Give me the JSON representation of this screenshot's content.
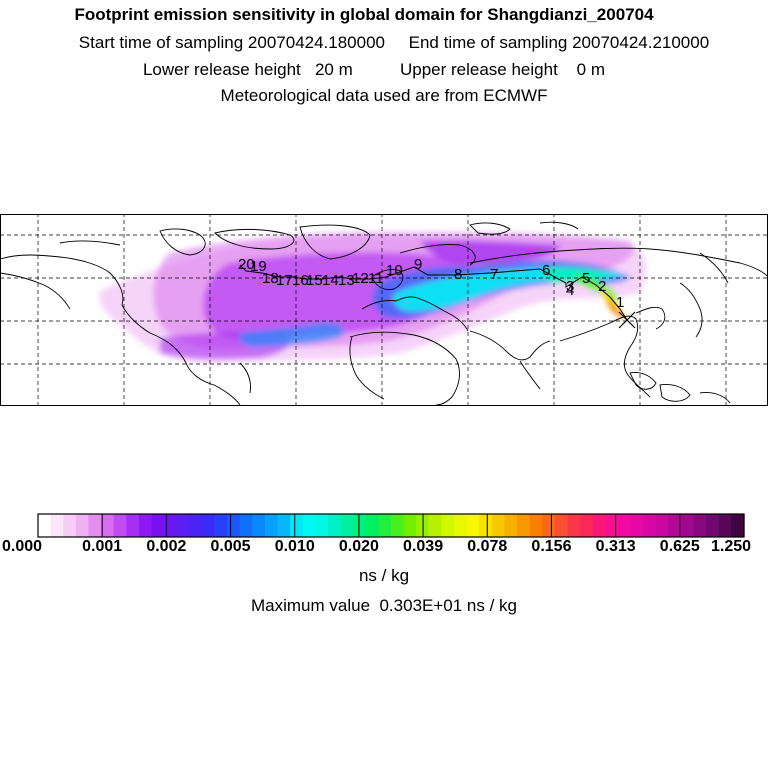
{
  "header": {
    "title": "Footprint emission sensitivity in global domain for Shangdianzi_200704",
    "sampling_line": "Start time of sampling 20070424.180000     End time of sampling 20070424.210000",
    "release_line": "Lower release height   20 m          Upper release height    0 m",
    "met_line": "Meteorological data used are from ECMWF"
  },
  "map": {
    "station_marker": "x-cross",
    "trajectory_labels": [
      "1",
      "2",
      "3",
      "4",
      "5",
      "6",
      "7",
      "8",
      "9",
      "10",
      "11",
      "12",
      "13",
      "14",
      "15",
      "16",
      "17",
      "18",
      "19",
      "20"
    ],
    "colors": {
      "coast": "#000000",
      "grid": "#000000",
      "trajectory": "#000000"
    }
  },
  "colorbar": {
    "tick_labels": [
      "0.000",
      "0.001",
      "0.002",
      "0.005",
      "0.010",
      "0.020",
      "0.039",
      "0.078",
      "0.156",
      "0.313",
      "0.625",
      "1.250"
    ],
    "colors": [
      "#ffffff",
      "#fbe6fb",
      "#f7ccf7",
      "#f0b0f4",
      "#e58cef",
      "#d66cf0",
      "#c04cf2",
      "#a830f5",
      "#9018f2",
      "#7a10f0",
      "#6a18ee",
      "#5a1ef0",
      "#4a24f2",
      "#3a2cf6",
      "#2a40f8",
      "#1c58fa",
      "#1070fa",
      "#0a88fa",
      "#08a0fa",
      "#06b8fa",
      "#00e8f8",
      "#00f8f0",
      "#00f8e0",
      "#00f0c8",
      "#00f0a0",
      "#00f080",
      "#00f060",
      "#20f040",
      "#48f020",
      "#70f000",
      "#98f000",
      "#b8f000",
      "#d0f800",
      "#e8f800",
      "#f8f800",
      "#f8e000",
      "#f8c800",
      "#f8b000",
      "#f89800",
      "#f88000",
      "#f86818",
      "#f85030",
      "#f83848",
      "#f82858",
      "#f81878",
      "#f81090",
      "#f008a0",
      "#e808a8",
      "#d808a8",
      "#c808a0",
      "#b40898",
      "#a00890",
      "#880880",
      "#700870",
      "#58085a",
      "#40063f"
    ],
    "units": "ns / kg",
    "max_value": "Maximum value  0.303E+01 ns / kg"
  }
}
